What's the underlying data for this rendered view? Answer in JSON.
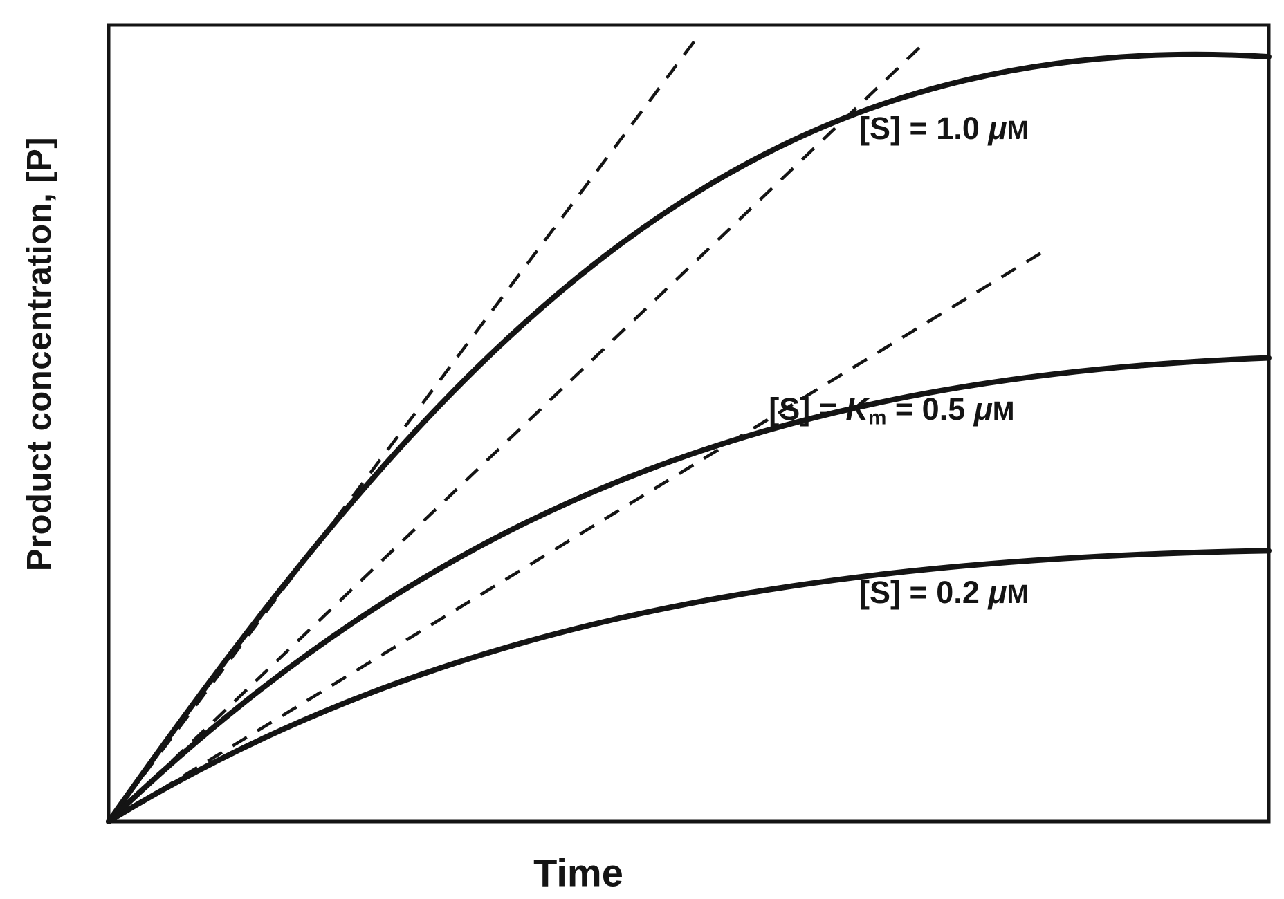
{
  "chart_data": {
    "type": "line",
    "title": "",
    "xlabel": "Time",
    "ylabel": "Product concentration, [P]",
    "description": "Enzyme kinetics progress curves: product concentration [P] versus time for three initial substrate concentrations. Solid curves saturate over time; dashed straight lines are the initial-velocity tangents at t = 0. Axes are qualitative (no numeric ticks); values below are normalized to the plot box (x 0-1 left to right, y 0-1 bottom to top).",
    "grid": false,
    "legend": "none",
    "x_axis": {
      "label": "Time",
      "ticks": [],
      "range_norm": [
        0,
        1
      ]
    },
    "y_axis": {
      "label": "Product concentration, [P]",
      "ticks": [],
      "range_norm": [
        0,
        1
      ]
    },
    "series": [
      {
        "name": "[S] = 1.0 uM",
        "label_text": "[S] = 1.0 μM",
        "label_segments": [
          {
            "text": "[S] = 1.0 "
          },
          {
            "text": "μ",
            "italic": true
          },
          {
            "text": "M",
            "small": true
          }
        ],
        "label_pos": {
          "x": 0.647,
          "y": 0.892
        },
        "initial_slope_norm": 1.94,
        "end_value_norm": 0.96,
        "bezier": [
          [
            0,
            0
          ],
          [
            0.3,
            0.62
          ],
          [
            0.55,
            1.0
          ],
          [
            1.0,
            0.96
          ]
        ]
      },
      {
        "name": "[S] = Km = 0.5 uM",
        "label_text": "[S] = Km = 0.5 μM",
        "label_segments": [
          {
            "text": "[S] = "
          },
          {
            "text": "K",
            "italic": true
          },
          {
            "text": "m",
            "sub": true
          },
          {
            "text": " = 0.5 "
          },
          {
            "text": "μ",
            "italic": true
          },
          {
            "text": "M",
            "small": true
          }
        ],
        "label_pos": {
          "x": 0.569,
          "y": 0.54
        },
        "initial_slope_norm": 1.39,
        "end_value_norm": 0.582,
        "bezier": [
          [
            0,
            0
          ],
          [
            0.3,
            0.42
          ],
          [
            0.6,
            0.56
          ],
          [
            1.0,
            0.582
          ]
        ]
      },
      {
        "name": "[S] = 0.2 uM",
        "label_text": "[S] = 0.2 μM",
        "label_segments": [
          {
            "text": "[S] = 0.2 "
          },
          {
            "text": "μ",
            "italic": true
          },
          {
            "text": "M",
            "small": true
          }
        ],
        "label_pos": {
          "x": 0.647,
          "y": 0.31
        },
        "initial_slope_norm": 0.888,
        "end_value_norm": 0.34,
        "bezier": [
          [
            0,
            0
          ],
          [
            0.28,
            0.25
          ],
          [
            0.6,
            0.33
          ],
          [
            1.0,
            0.34
          ]
        ]
      }
    ],
    "tangents": [
      {
        "series": "[S] = 1.0 uM",
        "slope_norm": 1.94,
        "x_end_norm": 0.505
      },
      {
        "series": "[S] = Km = 0.5 uM",
        "slope_norm": 1.39,
        "x_end_norm": 0.703
      },
      {
        "series": "[S] = 0.2 uM",
        "slope_norm": 0.888,
        "x_end_norm": 0.805
      }
    ],
    "styles": {
      "line_color": "#141414",
      "frame_color": "#141414",
      "background": "#ffffff",
      "curve_width": 8,
      "tangent_width": 4.5,
      "tangent_dash": "24 18",
      "frame_width": 5
    }
  }
}
